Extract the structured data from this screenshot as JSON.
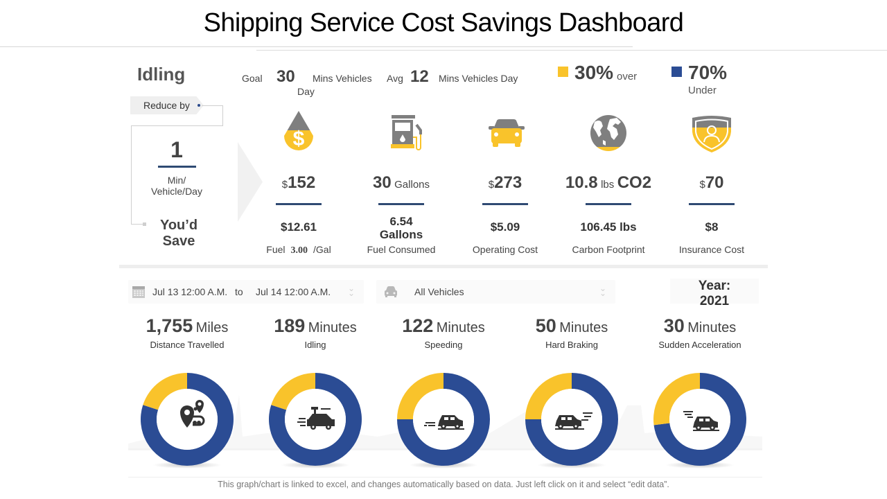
{
  "title": "Shipping Service Cost Savings Dashboard",
  "colors": {
    "yellow": "#F9C32B",
    "blue": "#2B4C94",
    "gray": "#7F7F7F",
    "navy_line": "#2F4A73"
  },
  "idling": {
    "title": "Idling",
    "reduce_by_label": "Reduce by",
    "reduce_value": "1",
    "reduce_unit": "Min/ Vehicle/Day",
    "youd_save": "You’d Save"
  },
  "goal": {
    "goal_label": "Goal",
    "goal_value": "30",
    "goal_unit": "Mins Vehicles",
    "goal_unit_2": "Day",
    "avg_label": "Avg",
    "avg_value": "12",
    "avg_unit": "Mins Vehicles Day"
  },
  "legend": [
    {
      "color": "#F9C32B",
      "percent": "30%",
      "label": "over"
    },
    {
      "color": "#2B4C94",
      "percent": "70%",
      "label": "Under"
    }
  ],
  "metrics": [
    {
      "icon": "fuel-cost-drop-icon",
      "prefix": "$",
      "value": "152",
      "unit": "",
      "savings": "$12.61",
      "label_pre": "Fuel",
      "label_bold": "3.00",
      "label_post": "/Gal"
    },
    {
      "icon": "fuel-pump-icon",
      "prefix": "",
      "value": "30",
      "unit": "Gallons",
      "savings": "6.54 Gallons",
      "label": "Fuel Consumed"
    },
    {
      "icon": "car-icon",
      "prefix": "$",
      "value": "273",
      "unit": "",
      "savings": "$5.09",
      "label": "Operating Cost"
    },
    {
      "icon": "globe-icon",
      "prefix": "",
      "value": "10.8",
      "unit": "lbs",
      "unit2": "CO2",
      "savings": "106.45 lbs",
      "label": "Carbon Footprint"
    },
    {
      "icon": "insurance-shield-icon",
      "prefix": "$",
      "value": "70",
      "unit": "",
      "savings": "$8",
      "label": "Insurance Cost"
    }
  ],
  "filters": {
    "date_from": "Jul 13 12:00 A.M.",
    "date_to_label": "to",
    "date_to": "Jul 14 12:00 A.M.",
    "vehicles": "All Vehicles",
    "year_label": "Year:",
    "year_value": "2021"
  },
  "chart_data": {
    "type": "pie",
    "title": "",
    "legend": [
      "over",
      "under"
    ],
    "series": [
      {
        "name": "Distance Travelled",
        "value": "1,755",
        "unit": "Miles",
        "over_fraction": 0.2,
        "under_fraction": 0.8,
        "icon": "route-map-pins-icon"
      },
      {
        "name": "Idling",
        "value": "189",
        "unit": "Minutes",
        "over_fraction": 0.2,
        "under_fraction": 0.8,
        "icon": "idling-car-icon"
      },
      {
        "name": "Speeding",
        "value": "122",
        "unit": "Minutes",
        "over_fraction": 0.25,
        "under_fraction": 0.75,
        "icon": "speeding-car-icon"
      },
      {
        "name": "Hard Braking",
        "value": "50",
        "unit": "Minutes",
        "over_fraction": 0.25,
        "under_fraction": 0.75,
        "icon": "braking-car-icon"
      },
      {
        "name": "Sudden Acceleration",
        "value": "30",
        "unit": "Minutes",
        "over_fraction": 0.27,
        "under_fraction": 0.73,
        "icon": "accelerating-car-icon"
      }
    ]
  },
  "footer": "This graph/chart is linked to excel, and changes automatically based on data. Just left click on it and select “edit data”."
}
